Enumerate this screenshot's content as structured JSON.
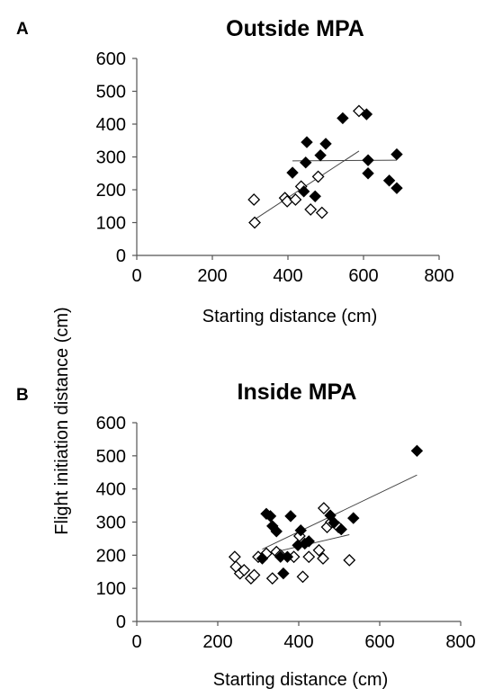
{
  "figure": {
    "shared_ylabel": "Flight initiation distance (cm)"
  },
  "chart_data": [
    {
      "panel_label": "A",
      "type": "scatter",
      "title": "Outside MPA",
      "xlabel": "Starting distance (cm)",
      "ylabel": "Flight initiation distance (cm)",
      "xlim": [
        0,
        800
      ],
      "ylim": [
        0,
        600
      ],
      "xticks": [
        0,
        200,
        400,
        600,
        800
      ],
      "yticks": [
        0,
        100,
        200,
        300,
        400,
        500,
        600
      ],
      "grid": false,
      "series": [
        {
          "marker": "open-diamond",
          "points": [
            [
              310,
              170
            ],
            [
              312,
              100
            ],
            [
              392,
              175
            ],
            [
              398,
              165
            ],
            [
              420,
              170
            ],
            [
              435,
              210
            ],
            [
              460,
              140
            ],
            [
              480,
              240
            ],
            [
              490,
              130
            ],
            [
              588,
              440
            ]
          ],
          "trend": [
            [
              310,
              108
            ],
            [
              588,
              318
            ]
          ]
        },
        {
          "marker": "filled-diamond",
          "points": [
            [
              412,
              252
            ],
            [
              442,
              195
            ],
            [
              447,
              283
            ],
            [
              450,
              345
            ],
            [
              472,
              180
            ],
            [
              486,
              305
            ],
            [
              500,
              340
            ],
            [
              545,
              418
            ],
            [
              608,
              430
            ],
            [
              612,
              290
            ],
            [
              612,
              250
            ],
            [
              668,
              228
            ],
            [
              688,
              308
            ],
            [
              688,
              205
            ]
          ],
          "trend": [
            [
              412,
              288
            ],
            [
              688,
              290
            ]
          ]
        }
      ]
    },
    {
      "panel_label": "B",
      "type": "scatter",
      "title": "Inside MPA",
      "xlabel": "Starting distance (cm)",
      "ylabel": "Flight initiation distance (cm)",
      "xlim": [
        0,
        800
      ],
      "ylim": [
        0,
        600
      ],
      "xticks": [
        0,
        200,
        400,
        600,
        800
      ],
      "yticks": [
        0,
        100,
        200,
        300,
        400,
        500,
        600
      ],
      "grid": false,
      "series": [
        {
          "marker": "open-diamond",
          "points": [
            [
              242,
              195
            ],
            [
              245,
              165
            ],
            [
              255,
              145
            ],
            [
              265,
              155
            ],
            [
              282,
              130
            ],
            [
              290,
              140
            ],
            [
              300,
              195
            ],
            [
              320,
              205
            ],
            [
              335,
              130
            ],
            [
              345,
              210
            ],
            [
              355,
              200
            ],
            [
              388,
              195
            ],
            [
              402,
              258
            ],
            [
              410,
              135
            ],
            [
              425,
              195
            ],
            [
              450,
              215
            ],
            [
              460,
              190
            ],
            [
              462,
              342
            ],
            [
              470,
              285
            ],
            [
              480,
              300
            ],
            [
              498,
              285
            ],
            [
              525,
              185
            ]
          ],
          "trend": [
            [
              290,
              195
            ],
            [
              525,
              262
            ]
          ]
        },
        {
          "marker": "filled-diamond",
          "points": [
            [
              310,
              190
            ],
            [
              320,
              325
            ],
            [
              330,
              318
            ],
            [
              335,
              288
            ],
            [
              345,
              272
            ],
            [
              355,
              195
            ],
            [
              362,
              145
            ],
            [
              372,
              195
            ],
            [
              380,
              318
            ],
            [
              398,
              230
            ],
            [
              405,
              275
            ],
            [
              415,
              235
            ],
            [
              425,
              242
            ],
            [
              478,
              320
            ],
            [
              487,
              298
            ],
            [
              505,
              278
            ],
            [
              535,
              312
            ],
            [
              692,
              515
            ]
          ],
          "trend": [
            [
              310,
              218
            ],
            [
              692,
              442
            ]
          ]
        }
      ]
    }
  ]
}
